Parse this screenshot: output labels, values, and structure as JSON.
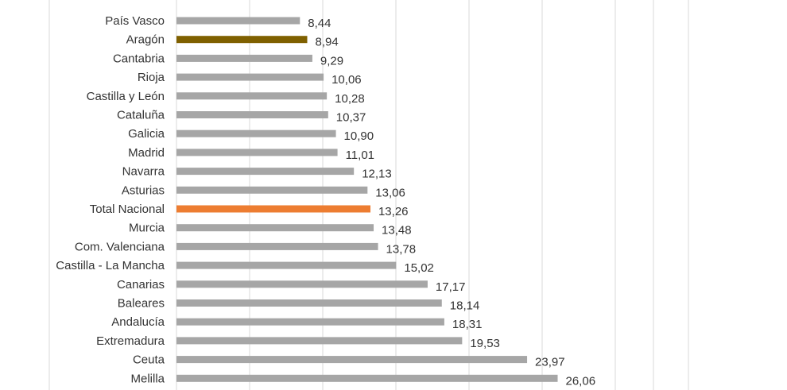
{
  "chart_data": {
    "type": "bar",
    "orientation": "horizontal",
    "title": "",
    "xlabel": "",
    "ylabel": "",
    "xlim": [
      0,
      35
    ],
    "grid": true,
    "legend": "none",
    "categories": [
      "País Vasco",
      "Aragón",
      "Cantabria",
      "Rioja",
      "Castilla y León",
      "Cataluña",
      "Galicia",
      "Madrid",
      "Navarra",
      "Asturias",
      "Total Nacional",
      "Murcia",
      "Com. Valenciana",
      "Castilla - La Mancha",
      "Canarias",
      "Baleares",
      "Andalucía",
      "Extremadura",
      "Ceuta",
      "Melilla"
    ],
    "values": [
      8.44,
      8.94,
      9.29,
      10.06,
      10.28,
      10.37,
      10.9,
      11.01,
      12.13,
      13.06,
      13.26,
      13.48,
      13.78,
      15.02,
      17.17,
      18.14,
      18.31,
      19.53,
      23.97,
      26.06
    ],
    "value_labels": [
      "8,44",
      "8,94",
      "9,29",
      "10,06",
      "10,28",
      "10,37",
      "10,90",
      "11,01",
      "12,13",
      "13,06",
      "13,26",
      "13,48",
      "13,78",
      "15,02",
      "17,17",
      "18,14",
      "18,31",
      "19,53",
      "23,97",
      "26,06"
    ],
    "colors": {
      "default": "#a6a6a6",
      "Aragón": "#7f6000",
      "Total Nacional": "#ed7d31",
      "grid": "#d9d9d9",
      "text": "#333333"
    }
  }
}
